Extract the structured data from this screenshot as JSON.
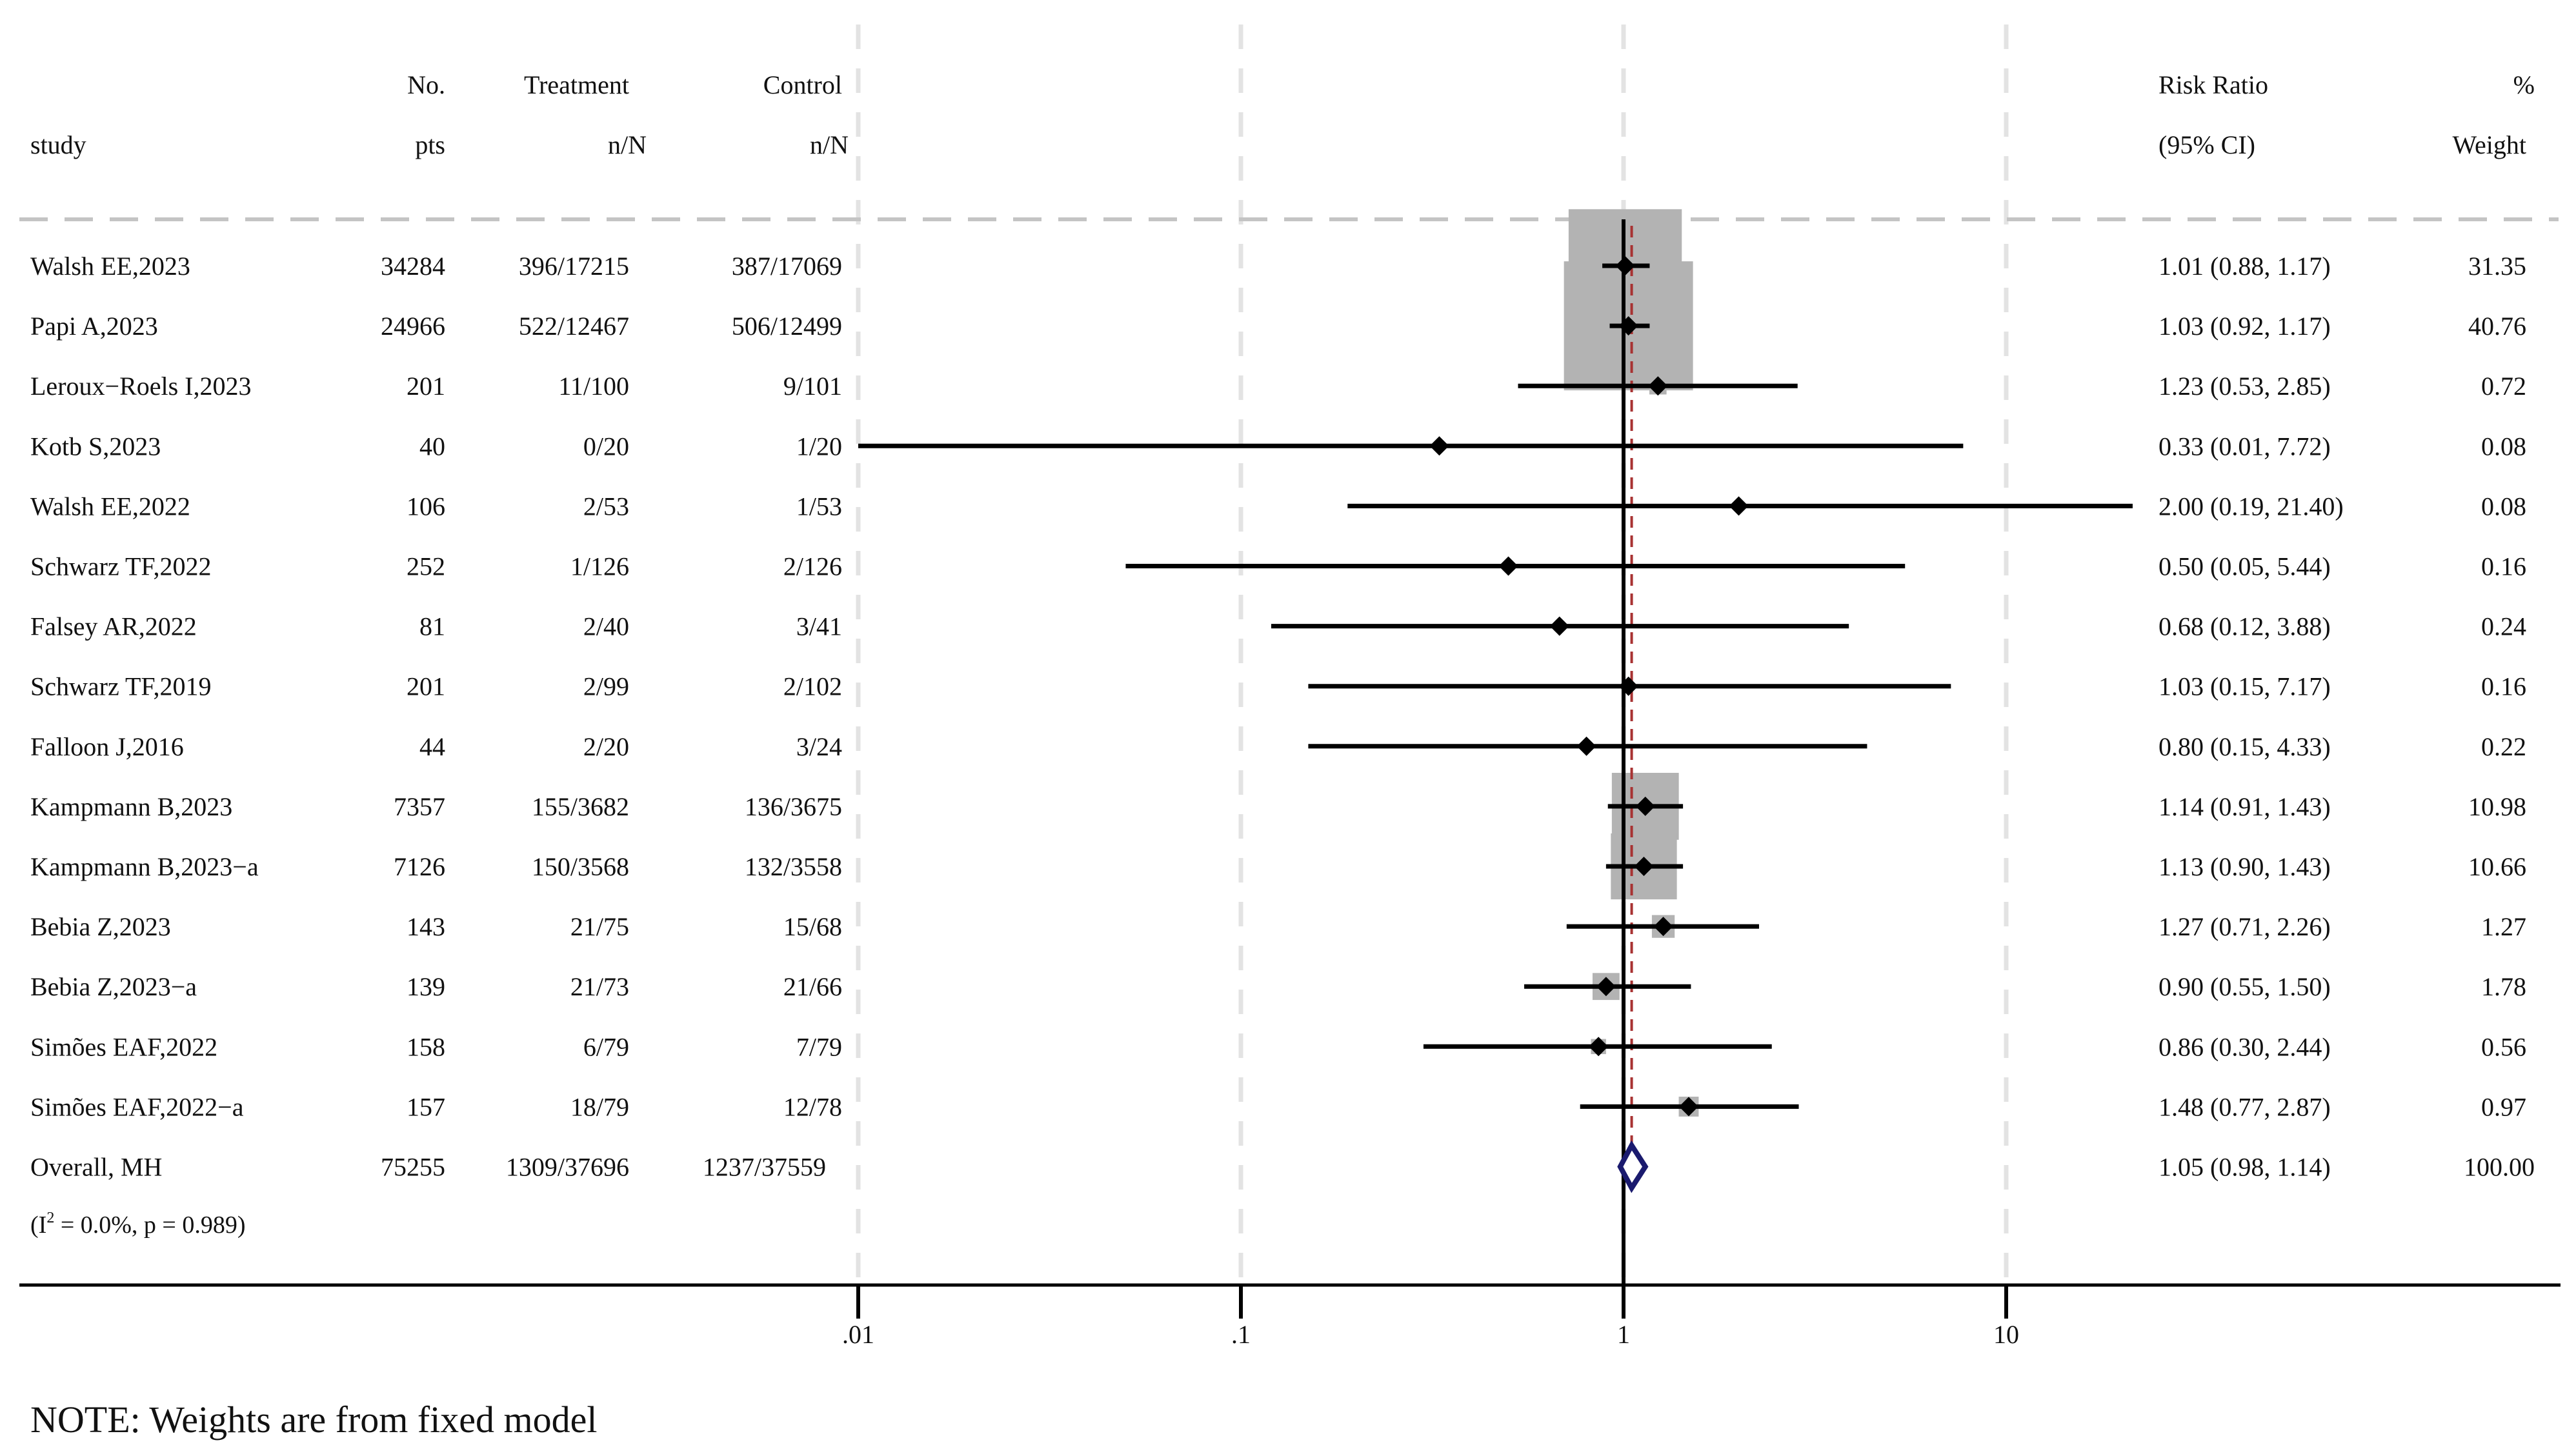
{
  "chart_data": {
    "type": "forest",
    "scale": "log",
    "x_ticks": [
      0.01,
      0.1,
      1,
      10
    ],
    "x_tick_labels": [
      ".01",
      ".1",
      "1",
      "10"
    ],
    "null_line": 1,
    "pooled_estimate": 1.05,
    "headers": {
      "study": "study",
      "no_pts_1": "No.",
      "no_pts_2": "pts",
      "treat_1": "Treatment",
      "treat_2": "n/N",
      "ctrl_1": "Control",
      "ctrl_2": "n/N",
      "rr_1": "Risk Ratio",
      "rr_2": "(95% CI)",
      "wt_1": "%",
      "wt_2": "Weight"
    },
    "studies": [
      {
        "study": "Walsh EE,2023",
        "pts": "34284",
        "treatment": "396/17215",
        "control": "387/17069",
        "rr": 1.01,
        "lo": 0.88,
        "hi": 1.17,
        "rr_text": "1.01 (0.88, 1.17)",
        "weight": 31.35,
        "weight_text": "31.35"
      },
      {
        "study": "Papi A,2023",
        "pts": "24966",
        "treatment": "522/12467",
        "control": "506/12499",
        "rr": 1.03,
        "lo": 0.92,
        "hi": 1.17,
        "rr_text": "1.03 (0.92, 1.17)",
        "weight": 40.76,
        "weight_text": "40.76"
      },
      {
        "study": "Leroux−Roels I,2023",
        "pts": "201",
        "treatment": "11/100",
        "control": "9/101",
        "rr": 1.23,
        "lo": 0.53,
        "hi": 2.85,
        "rr_text": "1.23 (0.53, 2.85)",
        "weight": 0.72,
        "weight_text": "0.72"
      },
      {
        "study": "Kotb S,2023",
        "pts": "40",
        "treatment": "0/20",
        "control": "1/20",
        "rr": 0.33,
        "lo": 0.01,
        "hi": 7.72,
        "rr_text": "0.33 (0.01, 7.72)",
        "weight": 0.08,
        "weight_text": "0.08"
      },
      {
        "study": "Walsh EE,2022",
        "pts": "106",
        "treatment": "2/53",
        "control": "1/53",
        "rr": 2.0,
        "lo": 0.19,
        "hi": 21.4,
        "rr_text": "2.00 (0.19, 21.40)",
        "weight": 0.08,
        "weight_text": "0.08"
      },
      {
        "study": "Schwarz TF,2022",
        "pts": "252",
        "treatment": "1/126",
        "control": "2/126",
        "rr": 0.5,
        "lo": 0.05,
        "hi": 5.44,
        "rr_text": "0.50 (0.05, 5.44)",
        "weight": 0.16,
        "weight_text": "0.16"
      },
      {
        "study": "Falsey AR,2022",
        "pts": "81",
        "treatment": "2/40",
        "control": "3/41",
        "rr": 0.68,
        "lo": 0.12,
        "hi": 3.88,
        "rr_text": "0.68 (0.12, 3.88)",
        "weight": 0.24,
        "weight_text": "0.24"
      },
      {
        "study": "Schwarz TF,2019",
        "pts": "201",
        "treatment": "2/99",
        "control": "2/102",
        "rr": 1.03,
        "lo": 0.15,
        "hi": 7.17,
        "rr_text": "1.03 (0.15, 7.17)",
        "weight": 0.16,
        "weight_text": "0.16"
      },
      {
        "study": "Falloon J,2016",
        "pts": "44",
        "treatment": "2/20",
        "control": "3/24",
        "rr": 0.8,
        "lo": 0.15,
        "hi": 4.33,
        "rr_text": "0.80 (0.15, 4.33)",
        "weight": 0.22,
        "weight_text": "0.22"
      },
      {
        "study": "Kampmann B,2023",
        "pts": "7357",
        "treatment": "155/3682",
        "control": "136/3675",
        "rr": 1.14,
        "lo": 0.91,
        "hi": 1.43,
        "rr_text": "1.14 (0.91, 1.43)",
        "weight": 10.98,
        "weight_text": "10.98"
      },
      {
        "study": "Kampmann B,2023−a",
        "pts": "7126",
        "treatment": "150/3568",
        "control": "132/3558",
        "rr": 1.13,
        "lo": 0.9,
        "hi": 1.43,
        "rr_text": "1.13 (0.90, 1.43)",
        "weight": 10.66,
        "weight_text": "10.66"
      },
      {
        "study": "Bebia Z,2023",
        "pts": "143",
        "treatment": "21/75",
        "control": "15/68",
        "rr": 1.27,
        "lo": 0.71,
        "hi": 2.26,
        "rr_text": "1.27 (0.71, 2.26)",
        "weight": 1.27,
        "weight_text": "1.27"
      },
      {
        "study": "Bebia Z,2023−a",
        "pts": "139",
        "treatment": "21/73",
        "control": "21/66",
        "rr": 0.9,
        "lo": 0.55,
        "hi": 1.5,
        "rr_text": "0.90 (0.55, 1.50)",
        "weight": 1.78,
        "weight_text": "1.78"
      },
      {
        "study": "Simões EAF,2022",
        "pts": "158",
        "treatment": "6/79",
        "control": "7/79",
        "rr": 0.86,
        "lo": 0.3,
        "hi": 2.44,
        "rr_text": "0.86 (0.30, 2.44)",
        "weight": 0.56,
        "weight_text": "0.56"
      },
      {
        "study": "Simões EAF,2022−a",
        "pts": "157",
        "treatment": "18/79",
        "control": "12/78",
        "rr": 1.48,
        "lo": 0.77,
        "hi": 2.87,
        "rr_text": "1.48 (0.77, 2.87)",
        "weight": 0.97,
        "weight_text": "0.97"
      }
    ],
    "overall": {
      "label": "Overall, MH",
      "pts": "75255",
      "treatment": "1309/37696",
      "control": "1237/37559",
      "rr": 1.05,
      "lo": 0.98,
      "hi": 1.14,
      "rr_text": "1.05 (0.98, 1.14)",
      "weight_text": "100.00"
    },
    "heterogeneity": {
      "prefix": "(I",
      "sup": "2",
      "suffix": " = 0.0%, p = 0.989)"
    }
  },
  "note": "NOTE: Weights are from fixed model",
  "colors": {
    "text": "#111111",
    "weight_box": "#b3b3b3",
    "ci_line": "#000000",
    "marker": "#000000",
    "pooled_diamond": "#1a1a6e",
    "pooled_line": "#a83232",
    "grid": "#e3e3e3",
    "separator": "#c4c4c4"
  }
}
